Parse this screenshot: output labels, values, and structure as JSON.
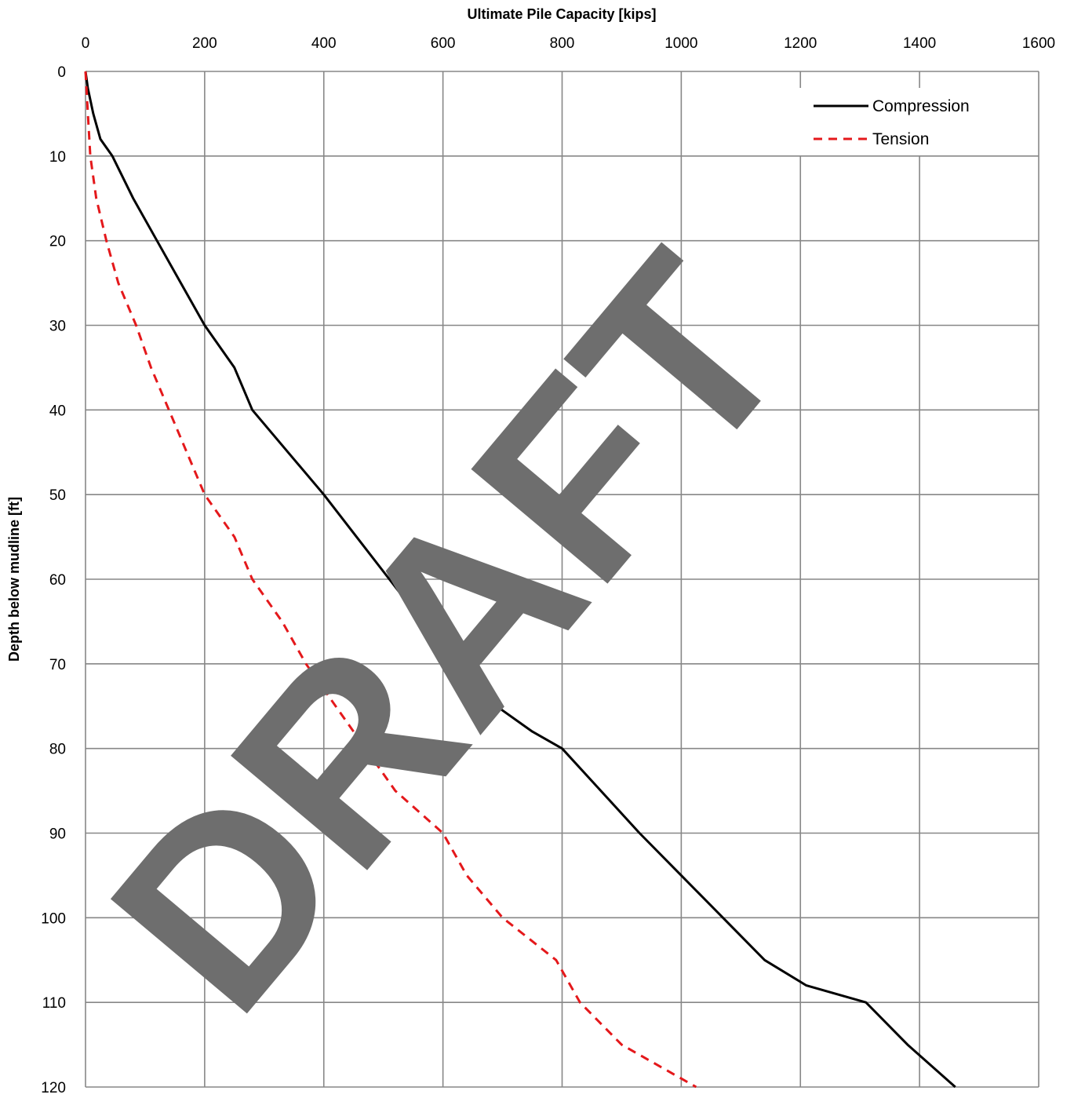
{
  "chart_data": {
    "type": "line",
    "title": "",
    "xlabel": "Ultimate Pile Capacity [kips]",
    "ylabel": "Depth below mudline [ft]",
    "xlim": [
      0,
      1600
    ],
    "ylim": [
      0,
      120
    ],
    "y_inverted": true,
    "x_axis_position": "top",
    "x_ticks": [
      0,
      200,
      400,
      600,
      800,
      1000,
      1200,
      1400,
      1600
    ],
    "y_ticks": [
      0,
      10,
      20,
      30,
      40,
      50,
      60,
      70,
      80,
      90,
      100,
      110,
      120
    ],
    "x_tick_labels": [
      "0",
      "200",
      "400",
      "600",
      "800",
      "1000",
      "1200",
      "1400",
      "1600"
    ],
    "y_tick_labels": [
      "0",
      "10",
      "20",
      "30",
      "40",
      "50",
      "60",
      "70",
      "80",
      "90",
      "100",
      "110",
      "120"
    ],
    "grid": true,
    "legend": "top-right",
    "series": [
      {
        "name": "Compression",
        "color": "#000000",
        "dash": "solid",
        "points": [
          [
            0,
            0
          ],
          [
            4,
            2
          ],
          [
            13,
            5
          ],
          [
            25,
            8
          ],
          [
            45,
            10
          ],
          [
            80,
            15
          ],
          [
            120,
            20
          ],
          [
            160,
            25
          ],
          [
            200,
            30
          ],
          [
            250,
            35
          ],
          [
            280,
            40
          ],
          [
            340,
            45
          ],
          [
            400,
            50
          ],
          [
            455,
            55
          ],
          [
            510,
            60
          ],
          [
            565,
            65
          ],
          [
            630,
            70
          ],
          [
            690,
            75
          ],
          [
            750,
            78
          ],
          [
            800,
            80
          ],
          [
            865,
            85
          ],
          [
            930,
            90
          ],
          [
            1000,
            95
          ],
          [
            1070,
            100
          ],
          [
            1140,
            105
          ],
          [
            1210,
            108
          ],
          [
            1310,
            110
          ],
          [
            1380,
            115
          ],
          [
            1460,
            120
          ]
        ]
      },
      {
        "name": "Tension",
        "color": "#e4181b",
        "dash": "dashed",
        "points": [
          [
            0,
            0
          ],
          [
            4,
            5
          ],
          [
            8,
            10
          ],
          [
            18,
            15
          ],
          [
            35,
            20
          ],
          [
            55,
            25
          ],
          [
            85,
            30
          ],
          [
            110,
            35
          ],
          [
            140,
            40
          ],
          [
            170,
            45
          ],
          [
            200,
            50
          ],
          [
            250,
            55
          ],
          [
            280,
            60
          ],
          [
            330,
            65
          ],
          [
            370,
            70
          ],
          [
            420,
            75
          ],
          [
            470,
            80
          ],
          [
            520,
            85
          ],
          [
            600,
            90
          ],
          [
            640,
            95
          ],
          [
            700,
            100
          ],
          [
            790,
            105
          ],
          [
            830,
            110
          ],
          [
            900,
            115
          ],
          [
            1025,
            120
          ]
        ]
      }
    ],
    "watermark": "DRAFT"
  }
}
